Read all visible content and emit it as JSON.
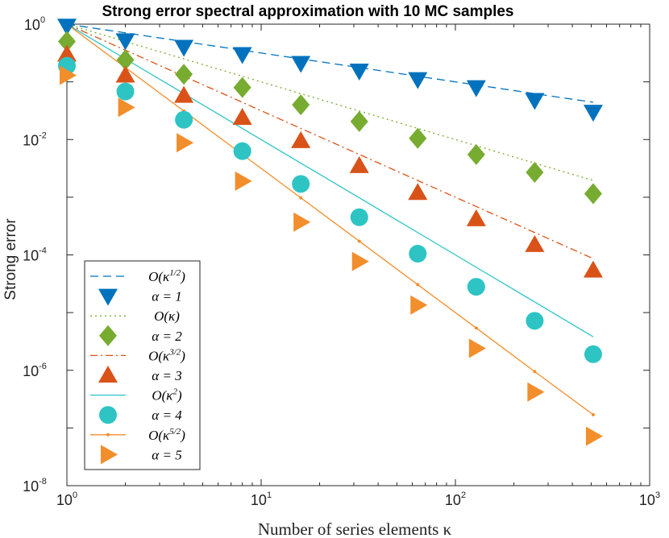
{
  "chart_data": {
    "type": "scatter",
    "title": "Strong error spectral approximation with 10 MC samples",
    "xlabel": "Number of series elements κ",
    "ylabel": "Strong error",
    "xscale": "log",
    "yscale": "log",
    "xlim": [
      1,
      1000
    ],
    "ylim": [
      1e-08,
      1
    ],
    "xticks": [
      {
        "value": 1,
        "base": "10",
        "exp": "0"
      },
      {
        "value": 10,
        "base": "10",
        "exp": "1"
      },
      {
        "value": 100,
        "base": "10",
        "exp": "2"
      },
      {
        "value": 1000,
        "base": "10",
        "exp": "3"
      }
    ],
    "yticks": [
      {
        "value": 1,
        "base": "10",
        "exp": "0"
      },
      {
        "value": 0.01,
        "base": "10",
        "exp": "-2"
      },
      {
        "value": 0.0001,
        "base": "10",
        "exp": "-4"
      },
      {
        "value": 1e-06,
        "base": "10",
        "exp": "-6"
      },
      {
        "value": 1e-08,
        "base": "10",
        "exp": "-8"
      }
    ],
    "x": [
      1,
      2,
      4,
      8,
      16,
      32,
      64,
      128,
      256,
      512
    ],
    "reference_lines": [
      {
        "name": "O(κ^{1/2})",
        "legend": "O(κ1/2)",
        "order": 0.5,
        "color": "#0072BD",
        "dash": "10,6",
        "values": [
          1,
          0.707,
          0.5,
          0.354,
          0.25,
          0.177,
          0.125,
          0.0884,
          0.0625,
          0.0442
        ]
      },
      {
        "name": "O(κ)",
        "legend": "O(κ)",
        "order": 1,
        "color": "#77AC30",
        "dash": "2,4",
        "values": [
          1,
          0.5,
          0.25,
          0.125,
          0.0625,
          0.03125,
          0.0156,
          0.00781,
          0.0039,
          0.00195
        ]
      },
      {
        "name": "O(κ^{3/2})",
        "legend": "O(κ3/2)",
        "order": 1.5,
        "color": "#D95319",
        "dash": "9,4,2,4",
        "values": [
          1,
          0.354,
          0.125,
          0.0442,
          0.0156,
          0.00552,
          0.00195,
          0.00069,
          0.000244,
          8.63e-05
        ]
      },
      {
        "name": "O(κ^{2})",
        "legend": "O(κ2)",
        "order": 2,
        "color": "#2EC4C4",
        "dash": "",
        "values": [
          1,
          0.25,
          0.0625,
          0.0156,
          0.0039,
          0.000977,
          0.000244,
          6.1e-05,
          1.53e-05,
          3.8e-06
        ]
      },
      {
        "name": "O(κ^{5/2})",
        "legend": "O(κ5/2)",
        "order": 2.5,
        "color": "#F28E2B",
        "dash": "",
        "dots": true,
        "values": [
          1,
          0.177,
          0.03125,
          0.00552,
          0.000977,
          0.000173,
          3.05e-05,
          5.4e-06,
          9.5e-07,
          1.7e-07
        ]
      }
    ],
    "series": [
      {
        "name": "α = 1",
        "marker": "triangle-down",
        "color": "#0072BD",
        "values": [
          0.93,
          0.52,
          0.4,
          0.3,
          0.21,
          0.155,
          0.11,
          0.08,
          0.048,
          0.03
        ]
      },
      {
        "name": "α = 2",
        "marker": "diamond",
        "color": "#77AC30",
        "values": [
          0.5,
          0.24,
          0.135,
          0.08,
          0.04,
          0.0205,
          0.0105,
          0.0055,
          0.0027,
          0.00115
        ]
      },
      {
        "name": "α = 3",
        "marker": "triangle-up",
        "color": "#D95319",
        "values": [
          0.3,
          0.13,
          0.058,
          0.024,
          0.0095,
          0.0035,
          0.0012,
          0.00042,
          0.00015,
          5.4e-05
        ]
      },
      {
        "name": "α = 4",
        "marker": "circle",
        "color": "#2EC4C4",
        "values": [
          0.19,
          0.068,
          0.022,
          0.0063,
          0.0017,
          0.00045,
          0.000105,
          2.8e-05,
          7.2e-06,
          1.9e-06
        ]
      },
      {
        "name": "α = 5",
        "marker": "triangle-right",
        "color": "#F28E2B",
        "values": [
          0.13,
          0.036,
          0.0088,
          0.0019,
          0.00037,
          7.7e-05,
          1.35e-05,
          2.4e-06,
          4.2e-07,
          7.2e-08
        ]
      }
    ],
    "legend": {
      "position": "bottom-left",
      "entries": [
        {
          "label": "O(κ1/2)",
          "kind": "line",
          "ref": 0
        },
        {
          "label": "α = 1",
          "kind": "marker",
          "ref": 0
        },
        {
          "label": "O(κ)",
          "kind": "line",
          "ref": 1
        },
        {
          "label": "α = 2",
          "kind": "marker",
          "ref": 1
        },
        {
          "label": "O(κ3/2)",
          "kind": "line",
          "ref": 2
        },
        {
          "label": "α = 3",
          "kind": "marker",
          "ref": 2
        },
        {
          "label": "O(κ2)",
          "kind": "line",
          "ref": 3
        },
        {
          "label": "α = 4",
          "kind": "marker",
          "ref": 3
        },
        {
          "label": "O(κ5/2)",
          "kind": "line",
          "ref": 4
        },
        {
          "label": "α = 5",
          "kind": "marker",
          "ref": 4
        }
      ]
    },
    "grid": false
  }
}
